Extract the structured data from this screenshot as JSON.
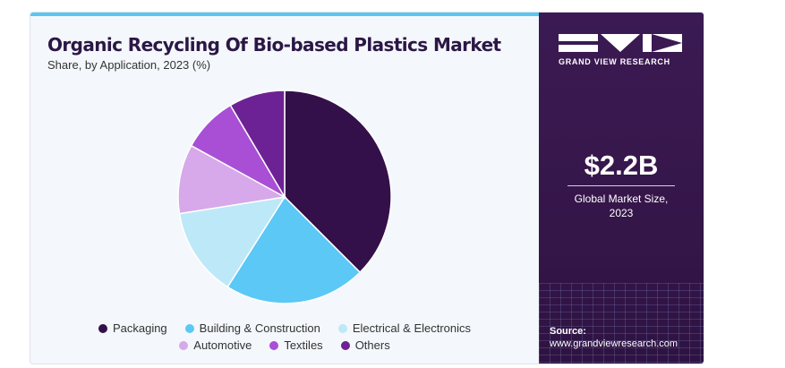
{
  "header": {
    "title": "Organic Recycling Of Bio-based Plastics Market",
    "subtitle": "Share, by Application, 2023 (%)"
  },
  "chart_data": {
    "type": "pie",
    "slices": [
      {
        "label": "Packaging",
        "value": 37.5,
        "color": "#34104a"
      },
      {
        "label": "Building & Construction",
        "value": 21.5,
        "color": "#5bc8f5"
      },
      {
        "label": "Electrical & Electronics",
        "value": 13.5,
        "color": "#bde8f8"
      },
      {
        "label": "Automotive",
        "value": 10.5,
        "color": "#d7a8ea"
      },
      {
        "label": "Textiles",
        "value": 8.5,
        "color": "#a94fd6"
      },
      {
        "label": "Others",
        "value": 8.5,
        "color": "#6c2294"
      }
    ],
    "legend_position": "bottom"
  },
  "legend": {
    "row1": [
      "Packaging",
      "Building & Construction",
      "Electrical & Electronics"
    ],
    "row2": [
      "Automotive",
      "Textiles",
      "Others"
    ]
  },
  "sidebar": {
    "logo_text": "GRAND VIEW RESEARCH",
    "market_size": "$2.2B",
    "market_caption_line1": "Global Market Size,",
    "market_caption_line2": "2023",
    "source_label": "Source:",
    "source_url": "www.grandviewresearch.com"
  },
  "colors": {
    "sidebar_bg": "#3b1a53",
    "accent": "#5bc5f2"
  }
}
